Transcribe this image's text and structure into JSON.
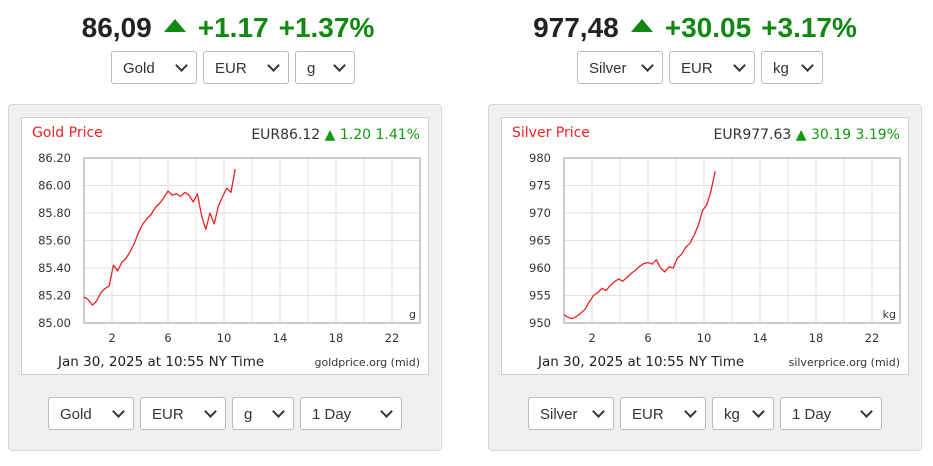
{
  "widgets": [
    {
      "header": {
        "price": "86,09",
        "change_abs": "+1.17",
        "change_pct": "+1.37%",
        "trend": "up"
      },
      "top_selects": [
        {
          "value": "Gold",
          "width": 86
        },
        {
          "value": "EUR",
          "width": 86
        },
        {
          "value": "g",
          "width": 60
        }
      ],
      "bottom_selects": [
        {
          "value": "Gold",
          "width": 86
        },
        {
          "value": "EUR",
          "width": 86
        },
        {
          "value": "g",
          "width": 62
        },
        {
          "value": "1 Day",
          "width": 102
        }
      ],
      "chart_data": {
        "type": "line",
        "title": "Gold Price",
        "quote": "EUR86.12",
        "quote_change": "1.20 1.41%",
        "unit_label": "g",
        "timestamp": "Jan 30, 2025 at 10:55 NY Time",
        "source": "goldprice.org (mid)",
        "xlim": [
          0,
          24
        ],
        "ylim": [
          85.0,
          86.2
        ],
        "x_ticks": [
          2,
          6,
          10,
          14,
          18,
          22
        ],
        "y_ticks": [
          "85.00",
          "85.20",
          "85.40",
          "85.60",
          "85.80",
          "86.00",
          "86.20"
        ],
        "grid": true,
        "line_color": "#ee2222",
        "series": [
          {
            "x": [
              0.0,
              0.3,
              0.6,
              0.9,
              1.2,
              1.5,
              1.8,
              2.1,
              2.4,
              2.7,
              3.0,
              3.3,
              3.6,
              3.9,
              4.2,
              4.5,
              4.8,
              5.1,
              5.4,
              5.7,
              6.0,
              6.3,
              6.6,
              6.9,
              7.2,
              7.5,
              7.8,
              8.1,
              8.4,
              8.7,
              9.0,
              9.3,
              9.6,
              9.9,
              10.2,
              10.5,
              10.8
            ],
            "y": [
              85.19,
              85.17,
              85.13,
              85.16,
              85.22,
              85.25,
              85.27,
              85.42,
              85.38,
              85.44,
              85.47,
              85.52,
              85.58,
              85.66,
              85.72,
              85.76,
              85.79,
              85.84,
              85.87,
              85.91,
              85.96,
              85.93,
              85.94,
              85.92,
              85.95,
              85.93,
              85.88,
              85.94,
              85.78,
              85.68,
              85.8,
              85.72,
              85.85,
              85.92,
              85.98,
              85.95,
              86.12
            ]
          }
        ]
      }
    },
    {
      "header": {
        "price": "977,48",
        "change_abs": "+30.05",
        "change_pct": "+3.17%",
        "trend": "up"
      },
      "top_selects": [
        {
          "value": "Silver",
          "width": 86
        },
        {
          "value": "EUR",
          "width": 86
        },
        {
          "value": "kg",
          "width": 62
        }
      ],
      "bottom_selects": [
        {
          "value": "Silver",
          "width": 86
        },
        {
          "value": "EUR",
          "width": 86
        },
        {
          "value": "kg",
          "width": 62
        },
        {
          "value": "1 Day",
          "width": 102
        }
      ],
      "chart_data": {
        "type": "line",
        "title": "Silver Price",
        "quote": "EUR977.63",
        "quote_change": "30.19 3.19%",
        "unit_label": "kg",
        "timestamp": "Jan 30, 2025 at 10:55 NY Time",
        "source": "silverprice.org (mid)",
        "xlim": [
          0,
          24
        ],
        "ylim": [
          950,
          980
        ],
        "x_ticks": [
          2,
          6,
          10,
          14,
          18,
          22
        ],
        "y_ticks": [
          "950",
          "955",
          "960",
          "965",
          "970",
          "975",
          "980"
        ],
        "grid": true,
        "line_color": "#ee2222",
        "series": [
          {
            "x": [
              0.0,
              0.3,
              0.6,
              0.9,
              1.2,
              1.5,
              1.8,
              2.1,
              2.4,
              2.7,
              3.0,
              3.3,
              3.6,
              3.9,
              4.2,
              4.5,
              4.8,
              5.1,
              5.4,
              5.7,
              6.0,
              6.3,
              6.6,
              6.9,
              7.2,
              7.5,
              7.8,
              8.1,
              8.4,
              8.7,
              9.0,
              9.3,
              9.6,
              9.9,
              10.2,
              10.5,
              10.8
            ],
            "y": [
              951.5,
              951.0,
              950.8,
              951.2,
              951.8,
              952.5,
              953.8,
              955.0,
              955.5,
              956.3,
              955.9,
              956.8,
              957.5,
              958.0,
              957.6,
              958.3,
              959.0,
              959.6,
              960.3,
              960.8,
              961.0,
              960.7,
              961.5,
              960.0,
              959.3,
              960.2,
              960.0,
              961.8,
              962.5,
              963.8,
              964.5,
              966.0,
              967.8,
              970.5,
              971.5,
              974.0,
              977.6
            ]
          }
        ]
      }
    }
  ]
}
